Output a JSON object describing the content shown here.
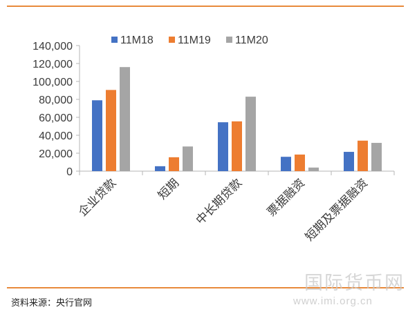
{
  "chart_data": {
    "type": "bar",
    "categories": [
      "企业贷款",
      "短期",
      "中长期贷款",
      "票据融资",
      "短期及票据融资"
    ],
    "series": [
      {
        "name": "11M18",
        "color": "#4472c4",
        "values": [
          79000,
          5500,
          54500,
          16000,
          21500
        ]
      },
      {
        "name": "11M19",
        "color": "#ed7d31",
        "values": [
          90500,
          15500,
          55500,
          18500,
          34000
        ]
      },
      {
        "name": "11M20",
        "color": "#a5a5a5",
        "values": [
          116000,
          27500,
          83000,
          4000,
          31500
        ]
      }
    ],
    "ylim": [
      0,
      140000
    ],
    "yticks": [
      "0",
      "20,000",
      "40,000",
      "60,000",
      "80,000",
      "100,000",
      "120,000",
      "140,000"
    ],
    "legend_position": "top",
    "grid": false
  },
  "footer": {
    "source": "资料来源：央行官网"
  },
  "watermark": {
    "text": "国际货币网",
    "url": "www.imi.org.cn"
  }
}
